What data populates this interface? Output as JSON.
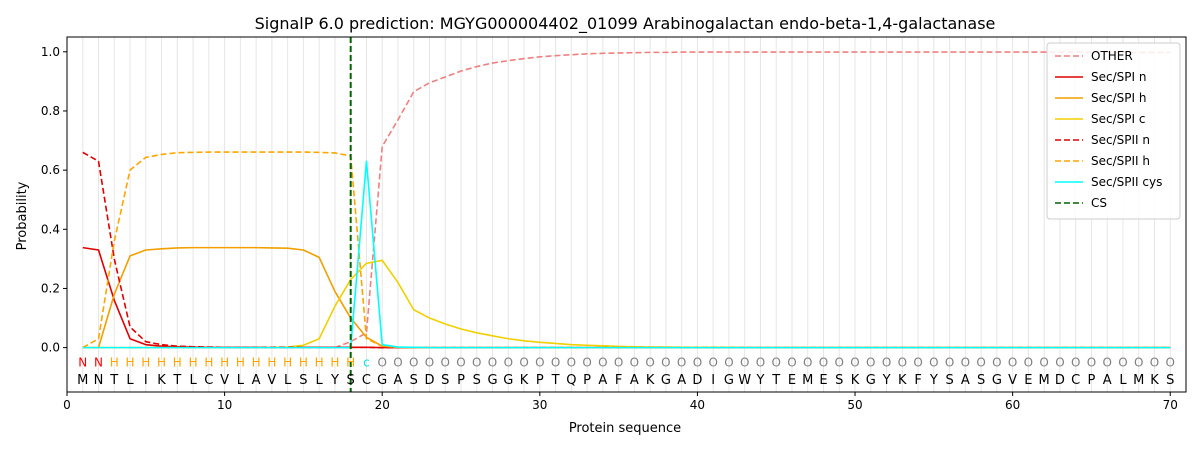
{
  "chart_data": {
    "type": "line",
    "title": "SignalP 6.0 prediction: MGYG000004402_01099 Arabinogalactan endo-beta-1,4-galactanase",
    "xlabel": "Protein sequence",
    "ylabel": "Probability",
    "xlim": [
      0,
      71
    ],
    "ylim": [
      -0.15,
      1.05
    ],
    "xticks": [
      0,
      10,
      20,
      30,
      40,
      50,
      60,
      70
    ],
    "yticks": [
      0.0,
      0.2,
      0.4,
      0.6,
      0.8,
      1.0
    ],
    "grid": "vertical lines at each residue position",
    "legend_position": "top-right",
    "cleavage_site": {
      "name": "CS",
      "x": 18,
      "color": "#006400",
      "style": "dashed"
    },
    "sequence": "MNTLIKTLCVLAVLSLYSCGASDSPSGGKPTQPAFAKGADIGWYTEMESKGYKFYSASGVEMDCPALMKS",
    "labels": "NNHHHHHHHHHHHHHHHHcOOOOOOOOOOOOOOOOOOOOOOOOOOOOOOOOOOOOOOOOOOOOOOOOOOO",
    "label_colors": {
      "N": "#ff0000",
      "H": "#ffa500",
      "c": "#00e5e5",
      "O": "#808080"
    },
    "series": [
      {
        "name": "OTHER",
        "color": "#f08080",
        "style": "dashed",
        "values": [
          0.0,
          0.0,
          0.0,
          0.0,
          0.0,
          0.0,
          0.0,
          0.0,
          0.0,
          0.0,
          0.0,
          0.0,
          0.0,
          0.0,
          0.0,
          0.0,
          0.0,
          0.02,
          0.05,
          0.68,
          0.77,
          0.865,
          0.895,
          0.915,
          0.935,
          0.95,
          0.962,
          0.97,
          0.977,
          0.983,
          0.987,
          0.99,
          0.993,
          0.995,
          0.996,
          0.997,
          0.998,
          0.998,
          0.999,
          0.999,
          0.999,
          0.999,
          0.999,
          0.999,
          0.999,
          0.999,
          0.999,
          0.999,
          0.999,
          0.999,
          0.999,
          0.999,
          0.999,
          0.999,
          0.999,
          0.999,
          0.999,
          0.999,
          0.999,
          0.999,
          0.999,
          0.999,
          0.999,
          0.999,
          0.998,
          0.998,
          0.998,
          0.998,
          0.998,
          0.998
        ]
      },
      {
        "name": "Sec/SPI n",
        "color": "#e00000",
        "style": "solid",
        "values": [
          0.338,
          0.33,
          0.16,
          0.03,
          0.01,
          0.005,
          0.003,
          0.002,
          0.001,
          0.001,
          0.001,
          0.001,
          0.001,
          0.001,
          0.001,
          0.001,
          0.001,
          0.001,
          0.001,
          0.0,
          0.0,
          0.0,
          0.0,
          0.0,
          0.0,
          0.0,
          0.0,
          0.0,
          0.0,
          0.0,
          0.0,
          0.0,
          0.0,
          0.0,
          0.0,
          0.0,
          0.0,
          0.0,
          0.0,
          0.0,
          0.0,
          0.0,
          0.0,
          0.0,
          0.0,
          0.0,
          0.0,
          0.0,
          0.0,
          0.0,
          0.0,
          0.0,
          0.0,
          0.0,
          0.0,
          0.0,
          0.0,
          0.0,
          0.0,
          0.0,
          0.0,
          0.0,
          0.0,
          0.0,
          0.0,
          0.0,
          0.0,
          0.0,
          0.0,
          0.0
        ]
      },
      {
        "name": "Sec/SPI h",
        "color": "#f0a000",
        "style": "solid",
        "values": [
          0.0,
          0.0,
          0.18,
          0.31,
          0.33,
          0.334,
          0.337,
          0.338,
          0.338,
          0.338,
          0.338,
          0.338,
          0.337,
          0.336,
          0.33,
          0.305,
          0.19,
          0.1,
          0.035,
          0.005,
          0.001,
          0.0,
          0.0,
          0.0,
          0.0,
          0.0,
          0.0,
          0.0,
          0.0,
          0.0,
          0.0,
          0.0,
          0.0,
          0.0,
          0.0,
          0.0,
          0.0,
          0.0,
          0.0,
          0.0,
          0.0,
          0.0,
          0.0,
          0.0,
          0.0,
          0.0,
          0.0,
          0.0,
          0.0,
          0.0,
          0.0,
          0.0,
          0.0,
          0.0,
          0.0,
          0.0,
          0.0,
          0.0,
          0.0,
          0.0,
          0.0,
          0.0,
          0.0,
          0.0,
          0.0,
          0.0,
          0.0,
          0.0,
          0.0,
          0.0
        ]
      },
      {
        "name": "Sec/SPI c",
        "color": "#f0d000",
        "style": "solid",
        "values": [
          0.0,
          0.0,
          0.0,
          0.0,
          0.0,
          0.0,
          0.0,
          0.0,
          0.0,
          0.0,
          0.0,
          0.0,
          0.001,
          0.002,
          0.008,
          0.03,
          0.14,
          0.23,
          0.285,
          0.295,
          0.22,
          0.128,
          0.1,
          0.08,
          0.063,
          0.05,
          0.04,
          0.03,
          0.023,
          0.018,
          0.014,
          0.01,
          0.008,
          0.006,
          0.004,
          0.003,
          0.002,
          0.002,
          0.001,
          0.001,
          0.001,
          0.001,
          0.0,
          0.0,
          0.0,
          0.0,
          0.0,
          0.0,
          0.0,
          0.0,
          0.0,
          0.0,
          0.0,
          0.0,
          0.0,
          0.0,
          0.0,
          0.0,
          0.0,
          0.0,
          0.0,
          0.0,
          0.0,
          0.0,
          0.0,
          0.0,
          0.0,
          0.0,
          0.0,
          0.0
        ]
      },
      {
        "name": "Sec/SPII n",
        "color": "#e00000",
        "style": "dashed",
        "values": [
          0.66,
          0.63,
          0.3,
          0.07,
          0.02,
          0.01,
          0.005,
          0.003,
          0.002,
          0.001,
          0.001,
          0.001,
          0.001,
          0.001,
          0.001,
          0.001,
          0.001,
          0.001,
          0.001,
          0.0,
          0.0,
          0.0,
          0.0,
          0.0,
          0.0,
          0.0,
          0.0,
          0.0,
          0.0,
          0.0,
          0.0,
          0.0,
          0.0,
          0.0,
          0.0,
          0.0,
          0.0,
          0.0,
          0.0,
          0.0,
          0.0,
          0.0,
          0.0,
          0.0,
          0.0,
          0.0,
          0.0,
          0.0,
          0.0,
          0.0,
          0.0,
          0.0,
          0.0,
          0.0,
          0.0,
          0.0,
          0.0,
          0.0,
          0.0,
          0.0,
          0.0,
          0.0,
          0.0,
          0.0,
          0.0,
          0.0,
          0.0,
          0.0,
          0.0,
          0.0
        ]
      },
      {
        "name": "Sec/SPII h",
        "color": "#ffa500",
        "style": "dashed",
        "values": [
          0.0,
          0.03,
          0.36,
          0.6,
          0.643,
          0.653,
          0.659,
          0.66,
          0.661,
          0.661,
          0.661,
          0.661,
          0.661,
          0.661,
          0.661,
          0.66,
          0.658,
          0.648,
          0.03,
          0.005,
          0.001,
          0.0,
          0.0,
          0.0,
          0.0,
          0.0,
          0.0,
          0.0,
          0.0,
          0.0,
          0.0,
          0.0,
          0.0,
          0.0,
          0.0,
          0.0,
          0.0,
          0.0,
          0.0,
          0.0,
          0.0,
          0.0,
          0.0,
          0.0,
          0.0,
          0.0,
          0.0,
          0.0,
          0.0,
          0.0,
          0.0,
          0.0,
          0.0,
          0.0,
          0.0,
          0.0,
          0.0,
          0.0,
          0.0,
          0.0,
          0.0,
          0.0,
          0.0,
          0.0,
          0.0,
          0.0,
          0.0,
          0.0,
          0.0,
          0.0
        ]
      },
      {
        "name": "Sec/SPII cys",
        "color": "#00ffff",
        "style": "solid",
        "values": [
          0.0,
          0.0,
          0.0,
          0.0,
          0.0,
          0.0,
          0.0,
          0.0,
          0.0,
          0.0,
          0.0,
          0.0,
          0.0,
          0.0,
          0.0,
          0.0,
          0.0,
          0.0,
          0.63,
          0.01,
          0.002,
          0.001,
          0.0,
          0.0,
          0.0,
          0.0,
          0.0,
          0.0,
          0.0,
          0.0,
          0.0,
          0.0,
          0.0,
          0.0,
          0.0,
          0.0,
          0.0,
          0.0,
          0.0,
          0.0,
          0.0,
          0.0,
          0.0,
          0.0,
          0.0,
          0.0,
          0.0,
          0.0,
          0.0,
          0.0,
          0.0,
          0.0,
          0.0,
          0.0,
          0.0,
          0.0,
          0.0,
          0.0,
          0.0,
          0.0,
          0.0,
          0.0,
          0.0,
          0.0,
          0.0,
          0.0,
          0.0,
          0.0,
          0.0,
          0.0
        ]
      }
    ]
  }
}
